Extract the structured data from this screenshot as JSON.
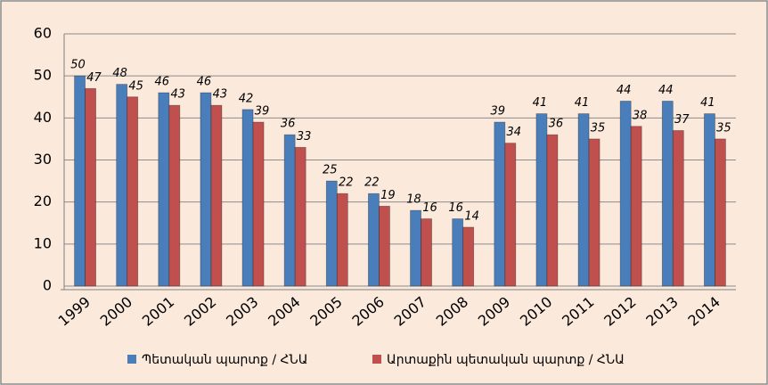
{
  "chart_data": {
    "type": "bar",
    "categories": [
      "1999",
      "2000",
      "2001",
      "2002",
      "2003",
      "2004",
      "2005",
      "2006",
      "2007",
      "2008",
      "2009",
      "2010",
      "2011",
      "2012",
      "2013",
      "2014"
    ],
    "series": [
      {
        "name": "Պետական պարտք / ՀՆԱ",
        "color": "#4a7ebb",
        "values": [
          50,
          48,
          46,
          46,
          42,
          36,
          25,
          22,
          18,
          16,
          39,
          41,
          41,
          44,
          44,
          41
        ]
      },
      {
        "name": "Արտաքին պետական պարտք / ՀՆԱ",
        "color": "#c0504d",
        "values": [
          47,
          45,
          43,
          43,
          39,
          33,
          22,
          19,
          16,
          14,
          34,
          36,
          35,
          38,
          37,
          35
        ]
      }
    ],
    "ylim": [
      0,
      60
    ],
    "yticks": [
      0,
      10,
      20,
      30,
      40,
      50,
      60
    ],
    "grid": true,
    "legend": "bottom"
  }
}
